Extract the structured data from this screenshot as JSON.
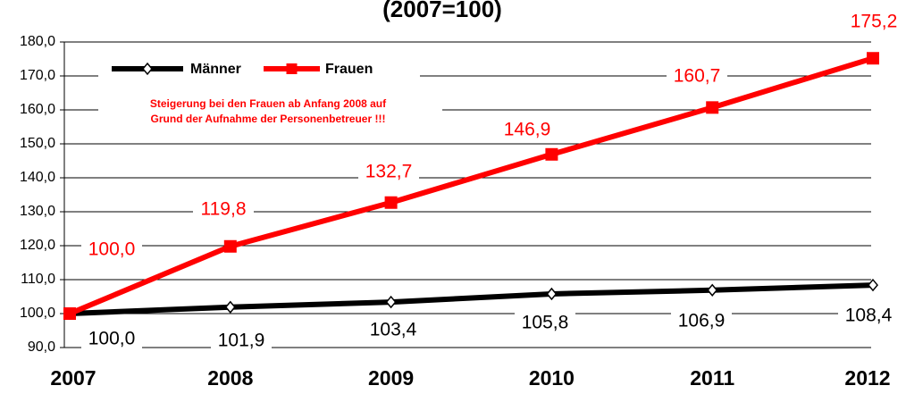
{
  "chart_data": {
    "type": "line",
    "title": "(2007=100)",
    "categories": [
      "2007",
      "2008",
      "2009",
      "2010",
      "2011",
      "2012"
    ],
    "series": [
      {
        "name": "Männer",
        "color": "#000000",
        "values": [
          100.0,
          101.9,
          103.4,
          105.8,
          106.9,
          108.4
        ],
        "value_labels": [
          "100,0",
          "101,9",
          "103,4",
          "105,8",
          "106,9",
          "108,4"
        ]
      },
      {
        "name": "Frauen",
        "color": "#ff0000",
        "values": [
          100.0,
          119.8,
          132.7,
          146.9,
          160.7,
          175.2
        ],
        "value_labels": [
          "100,0",
          "119,8",
          "132,7",
          "146,9",
          "160,7",
          "175,2"
        ]
      }
    ],
    "annotation": [
      "Steigerung bei den Frauen ab Anfang 2008 auf",
      "Grund der Aufnahme der Personenbetreuer !!!"
    ],
    "ylim": [
      90,
      180
    ],
    "yticks": [
      {
        "value": 90,
        "label": "90,0"
      },
      {
        "value": 100,
        "label": "100,0"
      },
      {
        "value": 110,
        "label": "110,0"
      },
      {
        "value": 120,
        "label": "120,0"
      },
      {
        "value": 130,
        "label": "130,0"
      },
      {
        "value": 140,
        "label": "140,0"
      },
      {
        "value": 150,
        "label": "150,0"
      },
      {
        "value": 160,
        "label": "160,0"
      },
      {
        "value": 170,
        "label": "170,0"
      },
      {
        "value": 180,
        "label": "180,0"
      }
    ],
    "grid": true,
    "legend": "top-left"
  }
}
